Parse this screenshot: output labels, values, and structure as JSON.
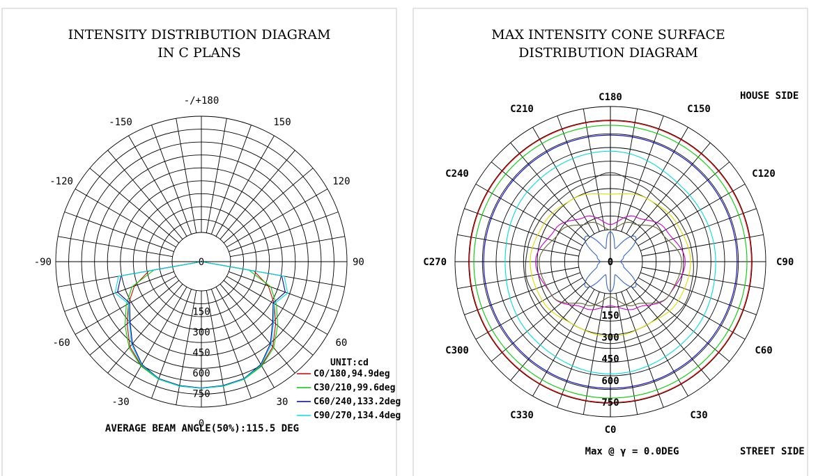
{
  "chart_data": [
    {
      "type": "polar-line",
      "title_lines": [
        "INTENSITY DISTRIBUTION DIAGRAM",
        "IN C PLANS"
      ],
      "angle_labels": [
        {
          "deg": 180,
          "text": "-/+180"
        },
        {
          "deg": -150,
          "text": "-150"
        },
        {
          "deg": 150,
          "text": "150"
        },
        {
          "deg": -120,
          "text": "-120"
        },
        {
          "deg": 120,
          "text": "120"
        },
        {
          "deg": -90,
          "text": "-90"
        },
        {
          "deg": 90,
          "text": "90"
        },
        {
          "deg": -60,
          "text": "-60"
        },
        {
          "deg": 60,
          "text": "60"
        },
        {
          "deg": -30,
          "text": "-30"
        },
        {
          "deg": 30,
          "text": "30"
        },
        {
          "deg": 0,
          "text": "0"
        }
      ],
      "radial_labels": [
        "0",
        "150",
        "300",
        "450",
        "600",
        "750"
      ],
      "rmax": 850,
      "unit_label": "UNIT:cd",
      "average_beam_label": "AVERAGE BEAM ANGLE(50%):115.5 DEG",
      "series": [
        {
          "name": "C0/180,94.9deg",
          "color": "#cc0000",
          "points": [
            [
              -90,
              0
            ],
            [
              -80,
              200
            ],
            [
              -70,
              340
            ],
            [
              -60,
              440
            ],
            [
              -50,
              540
            ],
            [
              -40,
              650
            ],
            [
              -30,
              720
            ],
            [
              -20,
              755
            ],
            [
              -10,
              765
            ],
            [
              0,
              770
            ],
            [
              10,
              765
            ],
            [
              20,
              755
            ],
            [
              30,
              720
            ],
            [
              40,
              650
            ],
            [
              50,
              540
            ],
            [
              60,
              440
            ],
            [
              70,
              340
            ],
            [
              80,
              200
            ],
            [
              90,
              0
            ]
          ]
        },
        {
          "name": "C30/210,99.6deg",
          "color": "#00cc00",
          "points": [
            [
              -90,
              0
            ],
            [
              -80,
              160
            ],
            [
              -70,
              360
            ],
            [
              -60,
              460
            ],
            [
              -50,
              560
            ],
            [
              -40,
              660
            ],
            [
              -30,
              725
            ],
            [
              -20,
              760
            ],
            [
              -10,
              770
            ],
            [
              0,
              772
            ],
            [
              10,
              770
            ],
            [
              20,
              760
            ],
            [
              30,
              725
            ],
            [
              40,
              660
            ],
            [
              50,
              560
            ],
            [
              60,
              460
            ],
            [
              70,
              360
            ],
            [
              80,
              160
            ],
            [
              90,
              0
            ]
          ]
        },
        {
          "name": "C60/240,133.2deg",
          "color": "#0000aa",
          "points": [
            [
              -90,
              0
            ],
            [
              -80,
              420
            ],
            [
              -70,
              480
            ],
            [
              -60,
              430
            ],
            [
              -50,
              510
            ],
            [
              -40,
              620
            ],
            [
              -30,
              710
            ],
            [
              -20,
              755
            ],
            [
              -10,
              765
            ],
            [
              0,
              770
            ],
            [
              10,
              765
            ],
            [
              20,
              755
            ],
            [
              30,
              710
            ],
            [
              40,
              620
            ],
            [
              50,
              510
            ],
            [
              60,
              430
            ],
            [
              70,
              480
            ],
            [
              80,
              420
            ],
            [
              90,
              0
            ]
          ]
        },
        {
          "name": "C90/270,134.4deg",
          "color": "#00e0e0",
          "points": [
            [
              -90,
              0
            ],
            [
              -80,
              440
            ],
            [
              -70,
              500
            ],
            [
              -60,
              440
            ],
            [
              -50,
              520
            ],
            [
              -40,
              630
            ],
            [
              -30,
              715
            ],
            [
              -20,
              758
            ],
            [
              -10,
              768
            ],
            [
              0,
              772
            ],
            [
              10,
              768
            ],
            [
              20,
              758
            ],
            [
              30,
              715
            ],
            [
              40,
              630
            ],
            [
              50,
              520
            ],
            [
              60,
              440
            ],
            [
              70,
              500
            ],
            [
              80,
              440
            ],
            [
              90,
              0
            ]
          ]
        }
      ]
    },
    {
      "type": "polar-line",
      "title_lines": [
        "MAX INTENSITY CONE SURFACE",
        "DISTRIBUTION DIAGRAM"
      ],
      "angle_labels": [
        {
          "deg": 180,
          "text": "C180"
        },
        {
          "deg": 150,
          "text": "C150"
        },
        {
          "deg": 210,
          "text": "C210"
        },
        {
          "deg": 120,
          "text": "C120"
        },
        {
          "deg": 240,
          "text": "C240"
        },
        {
          "deg": 90,
          "text": "C90"
        },
        {
          "deg": 270,
          "text": "C270"
        },
        {
          "deg": 60,
          "text": "C60"
        },
        {
          "deg": 300,
          "text": "C300"
        },
        {
          "deg": 30,
          "text": "C30"
        },
        {
          "deg": 330,
          "text": "C330"
        },
        {
          "deg": 0,
          "text": "C0"
        }
      ],
      "radial_labels": [
        "0",
        "150",
        "300",
        "450",
        "600",
        "750"
      ],
      "rmax": 850,
      "house_side_label": "HOUSE SIDE",
      "street_side_label": "STREET SIDE",
      "max_label": "Max @ γ = 0.0DEG",
      "series": [
        {
          "color": "#ff0000",
          "points": [
            [
              0,
              770
            ],
            [
              90,
              770
            ],
            [
              180,
              770
            ],
            [
              270,
              770
            ],
            [
              360,
              770
            ]
          ]
        },
        {
          "color": "#00cc00",
          "points": [
            [
              0,
              745
            ],
            [
              90,
              745
            ],
            [
              180,
              745
            ],
            [
              270,
              745
            ],
            [
              360,
              745
            ]
          ]
        },
        {
          "color": "#0000cc",
          "points": [
            [
              0,
              690
            ],
            [
              90,
              690
            ],
            [
              180,
              690
            ],
            [
              270,
              690
            ],
            [
              360,
              690
            ]
          ]
        },
        {
          "color": "#00dddd",
          "points": [
            [
              0,
              610
            ],
            [
              45,
              590
            ],
            [
              90,
              570
            ],
            [
              135,
              560
            ],
            [
              180,
              600
            ],
            [
              225,
              590
            ],
            [
              270,
              570
            ],
            [
              315,
              590
            ],
            [
              360,
              610
            ]
          ]
        },
        {
          "color": "#333333",
          "points": [
            [
              0,
              440
            ],
            [
              20,
              430
            ],
            [
              40,
              440
            ],
            [
              60,
              460
            ],
            [
              80,
              450
            ],
            [
              100,
              440
            ],
            [
              120,
              430
            ],
            [
              140,
              420
            ],
            [
              160,
              440
            ],
            [
              180,
              480
            ],
            [
              200,
              440
            ],
            [
              220,
              430
            ],
            [
              240,
              440
            ],
            [
              260,
              450
            ],
            [
              280,
              460
            ],
            [
              300,
              440
            ],
            [
              320,
              430
            ],
            [
              340,
              430
            ],
            [
              360,
              440
            ]
          ]
        },
        {
          "color": "#dddd00",
          "points": [
            [
              0,
              400
            ],
            [
              30,
              390
            ],
            [
              60,
              420
            ],
            [
              90,
              430
            ],
            [
              120,
              410
            ],
            [
              150,
              390
            ],
            [
              180,
              360
            ],
            [
              210,
              390
            ],
            [
              240,
              410
            ],
            [
              270,
              430
            ],
            [
              300,
              420
            ],
            [
              330,
              390
            ],
            [
              360,
              400
            ]
          ]
        },
        {
          "color": "#cc00cc",
          "points": [
            [
              0,
              230
            ],
            [
              30,
              280
            ],
            [
              60,
              360
            ],
            [
              90,
              400
            ],
            [
              120,
              340
            ],
            [
              150,
              270
            ],
            [
              180,
              190
            ],
            [
              210,
              270
            ],
            [
              240,
              340
            ],
            [
              270,
              400
            ],
            [
              300,
              360
            ],
            [
              330,
              280
            ],
            [
              360,
              230
            ]
          ]
        },
        {
          "color": "#666633",
          "points": [
            [
              0,
              180
            ],
            [
              30,
              260
            ],
            [
              60,
              360
            ],
            [
              90,
              380
            ],
            [
              120,
              310
            ],
            [
              150,
              230
            ],
            [
              180,
              160
            ],
            [
              210,
              230
            ],
            [
              240,
              310
            ],
            [
              270,
              380
            ],
            [
              300,
              360
            ],
            [
              330,
              260
            ],
            [
              360,
              180
            ]
          ]
        },
        {
          "color": "#3366cc",
          "points": [
            [
              0,
              150
            ],
            [
              20,
              60
            ],
            [
              45,
              180
            ],
            [
              70,
              60
            ],
            [
              90,
              40
            ],
            [
              110,
              60
            ],
            [
              135,
              180
            ],
            [
              160,
              60
            ],
            [
              180,
              150
            ],
            [
              200,
              60
            ],
            [
              225,
              180
            ],
            [
              250,
              60
            ],
            [
              270,
              40
            ],
            [
              290,
              60
            ],
            [
              315,
              180
            ],
            [
              340,
              60
            ],
            [
              360,
              150
            ]
          ]
        }
      ]
    }
  ]
}
